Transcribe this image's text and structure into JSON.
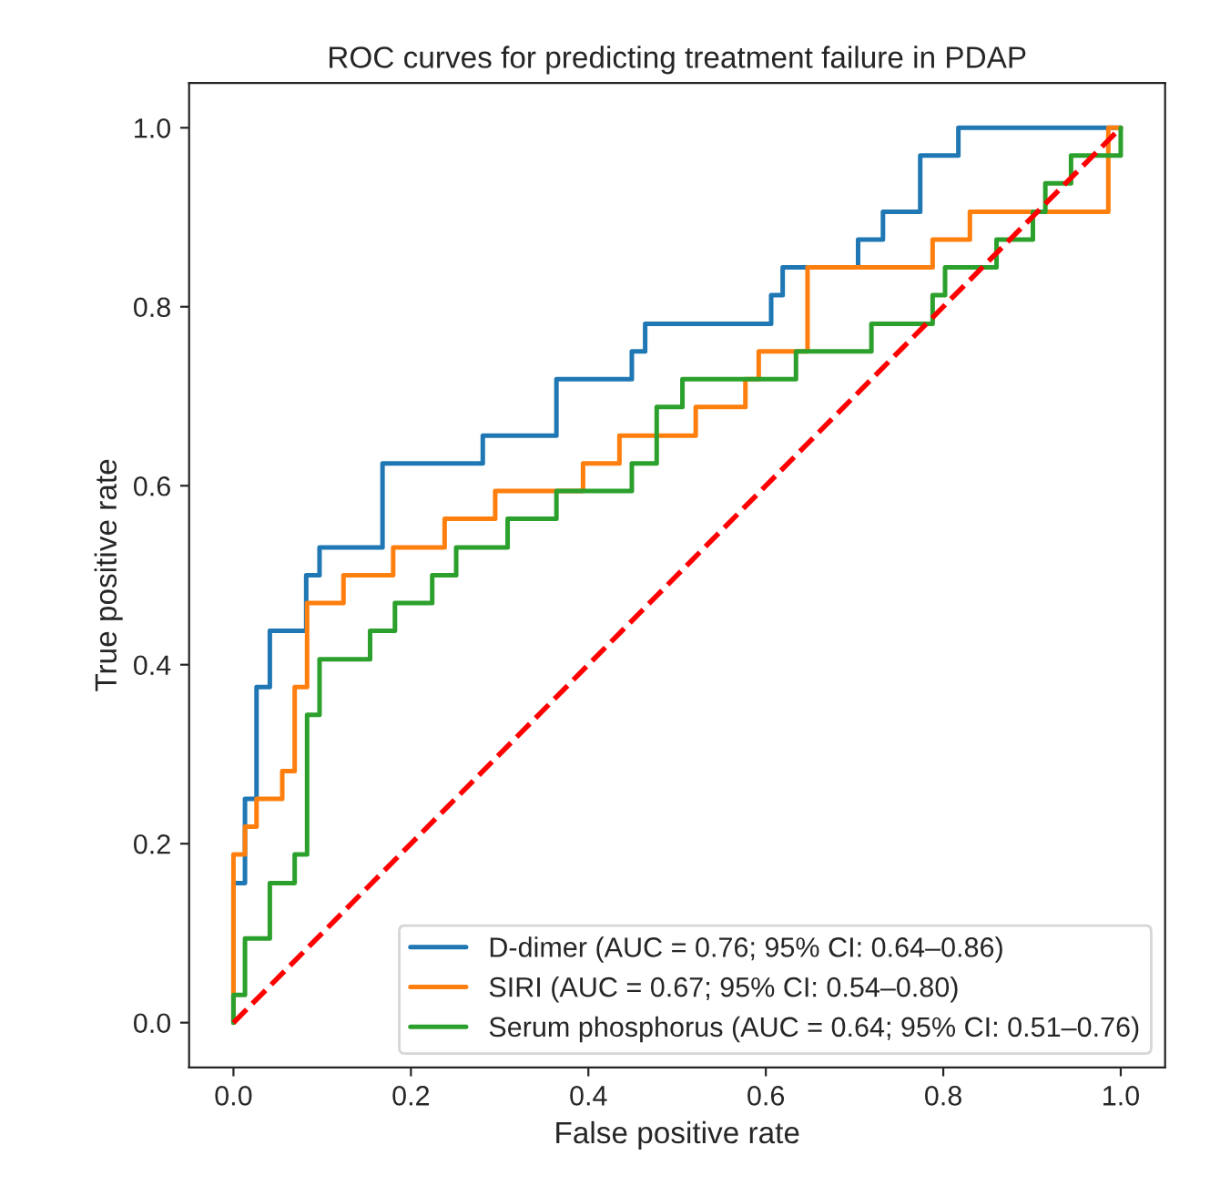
{
  "chart_data": {
    "type": "line",
    "title": "ROC curves for predicting treatment failure in PDAP",
    "xlabel": "False positive rate",
    "ylabel": "True positive rate",
    "xlim": [
      -0.05,
      1.05
    ],
    "ylim": [
      -0.05,
      1.05
    ],
    "xticks": [
      {
        "value": 0,
        "label": "0.0"
      },
      0.2,
      0.4,
      0.6,
      0.8,
      {
        "value": 1,
        "label": "1.0"
      }
    ],
    "yticks": [
      {
        "value": 0,
        "label": "0.0"
      },
      0.2,
      0.4,
      0.6,
      0.8,
      {
        "value": 1,
        "label": "1.0"
      }
    ],
    "legend": "bottom right",
    "grid": false,
    "marker": "none",
    "series": [
      {
        "name": "D-dimer (AUC = 0.76; 95% CI: 0.64–0.86)",
        "color": "#1f77b4",
        "line_style": "solid",
        "x": [
          0,
          0,
          0.013,
          0.013,
          0.026,
          0.026,
          0.041,
          0.041,
          0.082,
          0.082,
          0.097,
          0.097,
          0.168,
          0.168,
          0.281,
          0.281,
          0.364,
          0.364,
          0.449,
          0.449,
          0.464,
          0.464,
          0.606,
          0.606,
          0.619,
          0.619,
          0.704,
          0.704,
          0.732,
          0.732,
          0.774,
          0.774,
          0.817,
          0.817,
          1.0
        ],
        "values": [
          0,
          0.156,
          0.156,
          0.25,
          0.25,
          0.375,
          0.375,
          0.438,
          0.438,
          0.5,
          0.5,
          0.531,
          0.531,
          0.625,
          0.625,
          0.656,
          0.656,
          0.719,
          0.719,
          0.75,
          0.75,
          0.781,
          0.781,
          0.813,
          0.813,
          0.844,
          0.844,
          0.875,
          0.875,
          0.906,
          0.906,
          0.969,
          0.969,
          1.0,
          1.0
        ]
      },
      {
        "name": "SIRI (AUC = 0.67; 95% CI: 0.54–0.80)",
        "color": "#ff7f0e",
        "line_style": "solid",
        "x": [
          0,
          0,
          0.013,
          0.013,
          0.026,
          0.026,
          0.055,
          0.055,
          0.069,
          0.069,
          0.083,
          0.083,
          0.124,
          0.124,
          0.18,
          0.18,
          0.238,
          0.238,
          0.295,
          0.295,
          0.394,
          0.394,
          0.435,
          0.435,
          0.521,
          0.521,
          0.577,
          0.577,
          0.592,
          0.592,
          0.647,
          0.647,
          0.788,
          0.788,
          0.83,
          0.83,
          0.986,
          0.986,
          1.0
        ],
        "values": [
          0,
          0.188,
          0.188,
          0.219,
          0.219,
          0.25,
          0.25,
          0.281,
          0.281,
          0.375,
          0.375,
          0.469,
          0.469,
          0.5,
          0.5,
          0.531,
          0.531,
          0.563,
          0.563,
          0.594,
          0.594,
          0.625,
          0.625,
          0.656,
          0.656,
          0.688,
          0.688,
          0.719,
          0.719,
          0.75,
          0.75,
          0.844,
          0.844,
          0.875,
          0.875,
          0.906,
          0.906,
          1.0,
          1.0
        ]
      },
      {
        "name": "Serum phosphorus (AUC = 0.64; 95% CI: 0.51–0.76)",
        "color": "#2ca02c",
        "line_style": "solid",
        "x": [
          0,
          0,
          0.013,
          0.013,
          0.041,
          0.041,
          0.069,
          0.069,
          0.083,
          0.083,
          0.097,
          0.097,
          0.154,
          0.154,
          0.182,
          0.182,
          0.224,
          0.224,
          0.251,
          0.251,
          0.309,
          0.309,
          0.364,
          0.364,
          0.449,
          0.449,
          0.477,
          0.477,
          0.506,
          0.506,
          0.634,
          0.634,
          0.719,
          0.719,
          0.788,
          0.788,
          0.802,
          0.802,
          0.86,
          0.86,
          0.901,
          0.901,
          0.915,
          0.915,
          0.944,
          0.944,
          1.0,
          1.0
        ],
        "values": [
          0,
          0.031,
          0.031,
          0.094,
          0.094,
          0.156,
          0.156,
          0.188,
          0.188,
          0.344,
          0.344,
          0.406,
          0.406,
          0.438,
          0.438,
          0.469,
          0.469,
          0.5,
          0.5,
          0.531,
          0.531,
          0.563,
          0.563,
          0.594,
          0.594,
          0.625,
          0.625,
          0.688,
          0.688,
          0.719,
          0.719,
          0.75,
          0.75,
          0.781,
          0.781,
          0.813,
          0.813,
          0.844,
          0.844,
          0.875,
          0.875,
          0.906,
          0.906,
          0.938,
          0.938,
          0.969,
          0.969,
          1.0
        ]
      },
      {
        "color": "#ff0000",
        "line_style": "dashed",
        "x": [
          0,
          1
        ],
        "values": [
          0,
          1
        ]
      }
    ]
  }
}
